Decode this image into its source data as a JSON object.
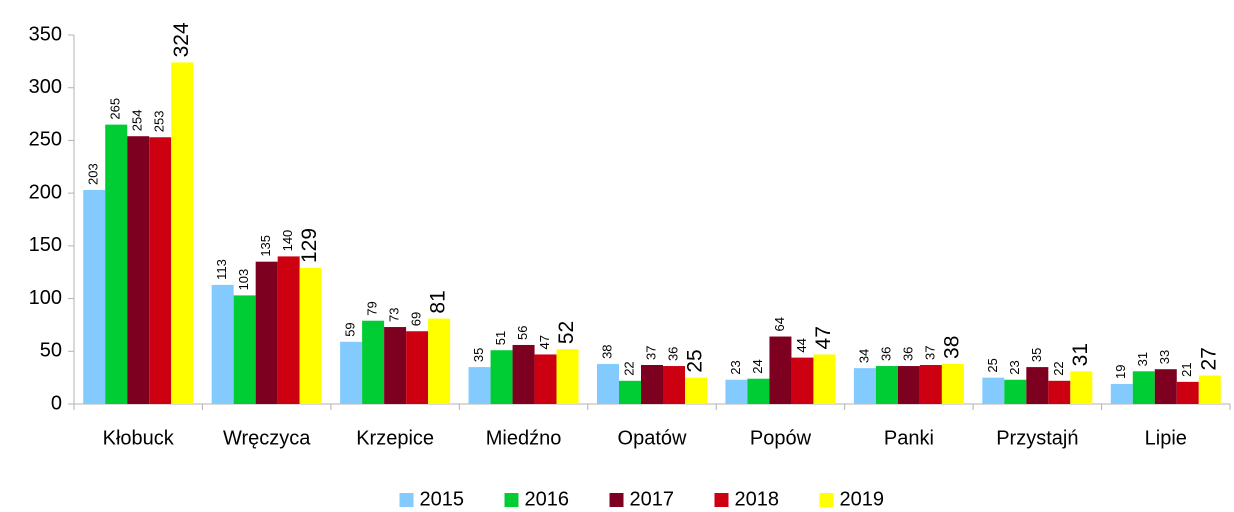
{
  "chart_data": {
    "type": "bar",
    "categories": [
      "Kłobuck",
      "Wręczyca",
      "Krzepice",
      "Miedźno",
      "Opatów",
      "Popów",
      "Panki",
      "Przystajń",
      "Lipie"
    ],
    "series": [
      {
        "name": "2015",
        "color": "#83caff",
        "values": [
          203,
          113,
          59,
          35,
          38,
          23,
          34,
          25,
          19
        ]
      },
      {
        "name": "2016",
        "color": "#00cc33",
        "values": [
          265,
          103,
          79,
          51,
          22,
          24,
          36,
          23,
          31
        ]
      },
      {
        "name": "2017",
        "color": "#7e0021",
        "values": [
          254,
          135,
          73,
          56,
          37,
          64,
          36,
          35,
          33
        ]
      },
      {
        "name": "2018",
        "color": "#cc0011",
        "values": [
          253,
          140,
          69,
          47,
          36,
          44,
          37,
          22,
          21
        ]
      },
      {
        "name": "2019",
        "color": "#ffff00",
        "values": [
          324,
          129,
          81,
          52,
          25,
          47,
          38,
          31,
          27
        ]
      }
    ],
    "ylim": [
      0,
      350
    ],
    "yticks": [
      0,
      50,
      100,
      150,
      200,
      250,
      300,
      350
    ],
    "legend": "bottom"
  }
}
